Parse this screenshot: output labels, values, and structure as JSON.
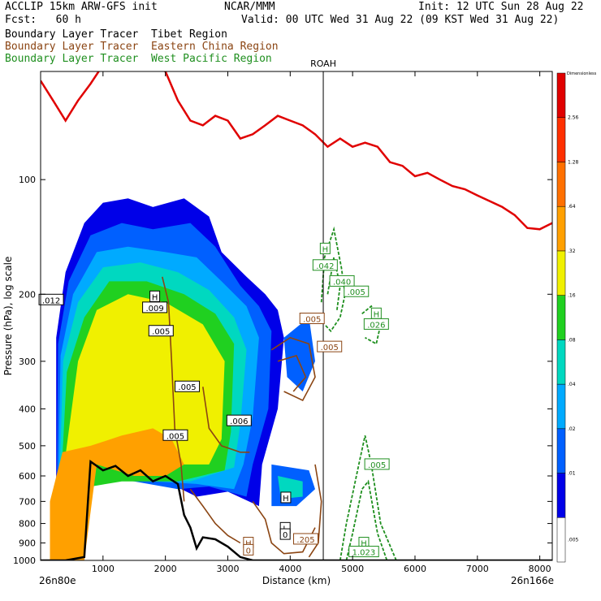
{
  "header": {
    "model": "ACCLIP 15km ARW-GFS init",
    "fcst": "Fcst:   60 h",
    "center": "NCAR/MMM",
    "init": "Init: 12 UTC Sun 28 Aug 22",
    "valid": "Valid: 00 UTC Wed 31 Aug 22 (09 KST Wed 31 Aug 22)",
    "line_tibet": "Boundary Layer Tracer  Tibet Region",
    "line_china": "Boundary Layer Tracer  Eastern China Region",
    "line_wpac": "Boundary Layer Tracer  West Pacific Region"
  },
  "colors": {
    "tibet": "#000000",
    "china": "#8b4513",
    "wpac": "#1f8f1f",
    "tropopause": "#e00000"
  },
  "chart_data": {
    "type": "cross-section",
    "title": "",
    "xlabel": "Distance (km)",
    "ylabel": "Pressure (hPa), log scale",
    "xlim": [
      0,
      8200
    ],
    "ylim": [
      1000,
      50
    ],
    "y_scale": "log",
    "x_ticks": [
      1000,
      2000,
      3000,
      4000,
      5000,
      6000,
      7000,
      8000
    ],
    "y_ticks": [
      100,
      200,
      300,
      400,
      500,
      600,
      700,
      800,
      900,
      1000
    ],
    "x_start_label": "26n80e",
    "x_end_label": "26n166e",
    "marker": {
      "label": "ROAH",
      "x": 4530
    },
    "colorbar": {
      "title": "Dimensionless",
      "labels": [
        ".005",
        ".01",
        ".02",
        ".04",
        ".08",
        ".16",
        ".32",
        ".64",
        "1.28",
        "2.56"
      ],
      "colors": [
        "#ffffff",
        "#0000e8",
        "#0060ff",
        "#00aaff",
        "#00d8c0",
        "#20d020",
        "#f0f000",
        "#ffa000",
        "#ff7000",
        "#ff3000",
        "#e00000"
      ]
    },
    "tropopause_line": {
      "x": [
        0,
        200,
        400,
        600,
        800,
        1000,
        1200,
        1400,
        1600,
        1800,
        2000,
        2200,
        2400,
        2600,
        2800,
        3000,
        3200,
        3400,
        3600,
        3800,
        4000,
        4200,
        4400,
        4600,
        4800,
        5000,
        5200,
        5400,
        5600,
        5800,
        6000,
        6200,
        6400,
        6600,
        6800,
        7000,
        7200,
        7400,
        7600,
        7800,
        8000,
        8200
      ],
      "y": [
        55,
        62,
        70,
        62,
        56,
        50,
        50,
        50,
        50,
        50,
        52,
        62,
        70,
        72,
        68,
        70,
        78,
        76,
        72,
        68,
        70,
        72,
        76,
        82,
        78,
        82,
        80,
        82,
        90,
        92,
        98,
        96,
        100,
        104,
        106,
        110,
        114,
        118,
        124,
        134,
        135,
        130
      ]
    },
    "terrain": {
      "x": [
        0,
        400,
        700,
        800,
        1000,
        1200,
        1400,
        1600,
        1800,
        2000,
        2200,
        2300,
        2400,
        2500,
        2600,
        2800,
        3000,
        3200,
        3400,
        3600,
        4000,
        4500,
        5000,
        6000,
        7000,
        8000,
        8200
      ],
      "y": [
        1000,
        1000,
        980,
        550,
        580,
        565,
        600,
        580,
        620,
        600,
        630,
        760,
        820,
        930,
        870,
        880,
        920,
        980,
        1000,
        1000,
        1000,
        1000,
        1000,
        1000,
        1000,
        1000,
        1000
      ]
    },
    "contour_labels": [
      {
        "series": "Tibet",
        "text": "H",
        "x": 1830,
        "y": 203
      },
      {
        "series": "Tibet",
        "text": ".009",
        "x": 1830,
        "y": 217
      },
      {
        "series": "Tibet",
        "text": ".005",
        "x": 1930,
        "y": 250
      },
      {
        "series": "Tibet",
        "text": ".012",
        "x": 170,
        "y": 207
      },
      {
        "series": "Tibet",
        "text": ".005",
        "x": 2350,
        "y": 350
      },
      {
        "series": "Tibet",
        "text": ".005",
        "x": 2160,
        "y": 470
      },
      {
        "series": "Tibet",
        "text": ".006",
        "x": 3180,
        "y": 430
      },
      {
        "series": "Tibet",
        "text": "H",
        "x": 3930,
        "y": 685
      },
      {
        "series": "Tibet",
        "text": "L",
        "x": 3920,
        "y": 823
      },
      {
        "series": "Tibet",
        "text": "0",
        "x": 3920,
        "y": 855
      },
      {
        "series": "China",
        "text": ".005",
        "x": 4350,
        "y": 232
      },
      {
        "series": "China",
        "text": ".005",
        "x": 4630,
        "y": 275
      },
      {
        "series": "China",
        "text": ".205",
        "x": 4250,
        "y": 880
      },
      {
        "series": "China",
        "text": "H",
        "x": 3330,
        "y": 900
      },
      {
        "series": "China",
        "text": "0",
        "x": 3330,
        "y": 940
      },
      {
        "series": "WPac",
        "text": "H",
        "x": 4560,
        "y": 152
      },
      {
        "series": "WPac",
        "text": ".042",
        "x": 4560,
        "y": 168
      },
      {
        "series": "WPac",
        "text": ".040",
        "x": 4830,
        "y": 185
      },
      {
        "series": "WPac",
        "text": ".005",
        "x": 5060,
        "y": 197
      },
      {
        "series": "WPac",
        "text": "H",
        "x": 5380,
        "y": 225
      },
      {
        "series": "WPac",
        "text": ".026",
        "x": 5380,
        "y": 240
      },
      {
        "series": "WPac",
        "text": ".005",
        "x": 5390,
        "y": 560
      },
      {
        "series": "WPac",
        "text": "H",
        "x": 5180,
        "y": 900
      },
      {
        "series": "WPac",
        "text": "1.023",
        "x": 5180,
        "y": 950
      }
    ]
  }
}
